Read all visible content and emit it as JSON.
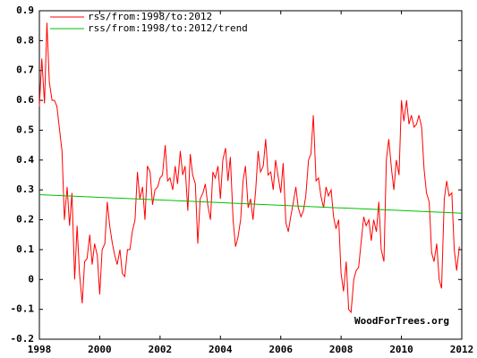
{
  "chart_data": {
    "type": "line",
    "annotations": [
      "WoodForTrees.org"
    ],
    "legend": "top-left",
    "grid": false,
    "xlim": [
      1998,
      2012
    ],
    "xticks": [
      1998,
      2000,
      2002,
      2004,
      2006,
      2008,
      2010,
      2012
    ],
    "ylim": [
      -0.2,
      0.9
    ],
    "yticks": [
      -0.2,
      -0.1,
      0,
      0.1,
      0.2,
      0.3,
      0.4,
      0.5,
      0.6,
      0.7,
      0.8,
      0.9
    ],
    "series": [
      {
        "name": "rss/from:1998/to:2012",
        "color": "#ff0000",
        "x": [
          1998.0,
          1998.08,
          1998.17,
          1998.25,
          1998.33,
          1998.42,
          1998.5,
          1998.58,
          1998.67,
          1998.75,
          1998.83,
          1998.92,
          1999.0,
          1999.08,
          1999.17,
          1999.25,
          1999.33,
          1999.42,
          1999.5,
          1999.58,
          1999.67,
          1999.75,
          1999.83,
          1999.92,
          2000.0,
          2000.08,
          2000.17,
          2000.25,
          2000.33,
          2000.42,
          2000.5,
          2000.58,
          2000.67,
          2000.75,
          2000.83,
          2000.92,
          2001.0,
          2001.08,
          2001.17,
          2001.25,
          2001.33,
          2001.42,
          2001.5,
          2001.58,
          2001.67,
          2001.75,
          2001.83,
          2001.92,
          2002.0,
          2002.08,
          2002.17,
          2002.25,
          2002.33,
          2002.42,
          2002.5,
          2002.58,
          2002.67,
          2002.75,
          2002.83,
          2002.92,
          2003.0,
          2003.08,
          2003.17,
          2003.25,
          2003.33,
          2003.42,
          2003.5,
          2003.58,
          2003.67,
          2003.75,
          2003.83,
          2003.92,
          2004.0,
          2004.08,
          2004.17,
          2004.25,
          2004.33,
          2004.42,
          2004.5,
          2004.58,
          2004.67,
          2004.75,
          2004.83,
          2004.92,
          2005.0,
          2005.08,
          2005.17,
          2005.25,
          2005.33,
          2005.42,
          2005.5,
          2005.58,
          2005.67,
          2005.75,
          2005.83,
          2005.92,
          2006.0,
          2006.08,
          2006.17,
          2006.25,
          2006.33,
          2006.42,
          2006.5,
          2006.58,
          2006.67,
          2006.75,
          2006.83,
          2006.92,
          2007.0,
          2007.08,
          2007.17,
          2007.25,
          2007.33,
          2007.42,
          2007.5,
          2007.58,
          2007.67,
          2007.75,
          2007.83,
          2007.92,
          2008.0,
          2008.08,
          2008.17,
          2008.25,
          2008.33,
          2008.42,
          2008.5,
          2008.58,
          2008.67,
          2008.75,
          2008.83,
          2008.92,
          2009.0,
          2009.08,
          2009.17,
          2009.25,
          2009.33,
          2009.42,
          2009.5,
          2009.58,
          2009.67,
          2009.75,
          2009.83,
          2009.92,
          2010.0,
          2010.08,
          2010.17,
          2010.25,
          2010.33,
          2010.42,
          2010.5,
          2010.58,
          2010.67,
          2010.75,
          2010.83,
          2010.92,
          2011.0,
          2011.08,
          2011.17,
          2011.25,
          2011.33,
          2011.42,
          2011.5,
          2011.58,
          2011.67,
          2011.75,
          2011.83,
          2011.92
        ],
        "values": [
          0.58,
          0.74,
          0.59,
          0.86,
          0.66,
          0.6,
          0.6,
          0.58,
          0.5,
          0.43,
          0.2,
          0.31,
          0.18,
          0.29,
          0.0,
          0.18,
          0.02,
          -0.08,
          0.06,
          0.07,
          0.15,
          0.05,
          0.12,
          0.08,
          -0.05,
          0.1,
          0.12,
          0.26,
          0.18,
          0.12,
          0.08,
          0.05,
          0.1,
          0.02,
          0.01,
          0.1,
          0.1,
          0.16,
          0.2,
          0.36,
          0.27,
          0.31,
          0.2,
          0.38,
          0.36,
          0.25,
          0.3,
          0.31,
          0.34,
          0.35,
          0.45,
          0.33,
          0.34,
          0.3,
          0.38,
          0.32,
          0.43,
          0.35,
          0.38,
          0.23,
          0.42,
          0.35,
          0.32,
          0.12,
          0.27,
          0.29,
          0.32,
          0.25,
          0.2,
          0.36,
          0.34,
          0.38,
          0.27,
          0.4,
          0.44,
          0.33,
          0.41,
          0.2,
          0.11,
          0.14,
          0.2,
          0.33,
          0.38,
          0.24,
          0.27,
          0.2,
          0.3,
          0.43,
          0.36,
          0.38,
          0.47,
          0.35,
          0.36,
          0.3,
          0.4,
          0.34,
          0.29,
          0.39,
          0.19,
          0.16,
          0.21,
          0.26,
          0.31,
          0.24,
          0.21,
          0.23,
          0.28,
          0.4,
          0.42,
          0.55,
          0.33,
          0.34,
          0.28,
          0.24,
          0.31,
          0.28,
          0.3,
          0.21,
          0.17,
          0.2,
          0.02,
          -0.04,
          0.06,
          -0.1,
          -0.11,
          0.0,
          0.03,
          0.04,
          0.13,
          0.21,
          0.18,
          0.2,
          0.13,
          0.2,
          0.16,
          0.26,
          0.1,
          0.06,
          0.4,
          0.47,
          0.37,
          0.3,
          0.4,
          0.35,
          0.6,
          0.53,
          0.6,
          0.52,
          0.55,
          0.51,
          0.52,
          0.55,
          0.51,
          0.37,
          0.29,
          0.26,
          0.09,
          0.06,
          0.12,
          0.0,
          -0.03,
          0.27,
          0.33,
          0.28,
          0.29,
          0.1,
          0.03,
          0.11
        ]
      },
      {
        "name": "rss/from:1998/to:2012/trend",
        "color": "#00c000",
        "x": [
          1998,
          2012
        ],
        "values": [
          0.284,
          0.222
        ]
      }
    ]
  }
}
